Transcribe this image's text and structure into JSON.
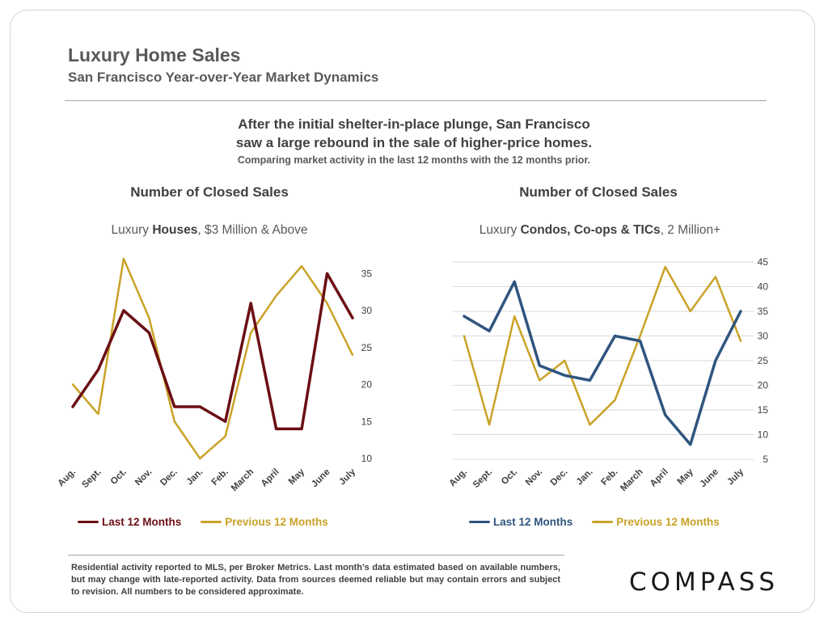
{
  "page": {
    "title": "Luxury Home Sales",
    "subtitle": "San Francisco Year-over-Year Market Dynamics",
    "headline_line1": "After the initial shelter-in-place plunge, San Francisco",
    "headline_line2": "saw a large rebound in the sale of higher-price homes.",
    "note": "Comparing market activity in the last 12 months with the 12 months prior.",
    "disclaimer": "Residential activity reported to MLS, per Broker Metrics. Last month’s data estimated based on available numbers, but may change with late-reported activity. Data from sources deemed reliable but may contain errors and subject to revision. All numbers to be considered approximate.",
    "logo": "COMPASS"
  },
  "colors": {
    "left_last12": "#6b0f14",
    "left_prev12": "#c9a227",
    "right_last12": "#2f557f",
    "right_prev12": "#c9a227",
    "text": "#404040"
  },
  "chart_data": [
    {
      "type": "line",
      "title": "Number of Closed Sales",
      "subtitle_prefix": "Luxury ",
      "subtitle_bold": "Houses",
      "subtitle_suffix": ", $3 Million & Above",
      "categories": [
        "Aug.",
        "Sept.",
        "Oct.",
        "Nov.",
        "Dec.",
        "Jan.",
        "Feb.",
        "March",
        "April",
        "May",
        "June",
        "July"
      ],
      "series": [
        {
          "name": "Last 12 Months",
          "values": [
            17,
            22,
            30,
            27,
            17,
            17,
            15,
            31,
            14,
            14,
            35,
            29
          ]
        },
        {
          "name": "Previous 12 Months",
          "values": [
            20,
            16,
            37,
            29,
            15,
            10,
            13,
            27,
            32,
            36,
            31,
            24
          ]
        }
      ],
      "ylim": [
        10,
        37
      ],
      "yticks": [
        10,
        15,
        20,
        25,
        30,
        35
      ],
      "yaxis_side": "right",
      "grid": false,
      "legend": "bottom"
    },
    {
      "type": "line",
      "title": "Number of Closed Sales",
      "subtitle_prefix": "Luxury ",
      "subtitle_bold": "Condos, Co-ops & TICs",
      "subtitle_suffix": ", 2 Million+",
      "categories": [
        "Aug.",
        "Sept.",
        "Oct.",
        "Nov.",
        "Dec.",
        "Jan.",
        "Feb.",
        "March",
        "April",
        "May",
        "June",
        "July"
      ],
      "series": [
        {
          "name": "Last 12 Months",
          "values": [
            34,
            31,
            41,
            24,
            22,
            21,
            30,
            29,
            14,
            8,
            25,
            35
          ]
        },
        {
          "name": "Previous 12 Months",
          "values": [
            30,
            12,
            34,
            21,
            25,
            12,
            17,
            30,
            44,
            35,
            42,
            29
          ]
        }
      ],
      "ylim": [
        5,
        45
      ],
      "yticks": [
        5,
        10,
        15,
        20,
        25,
        30,
        35,
        40,
        45
      ],
      "yaxis_side": "right",
      "grid": true,
      "legend": "bottom"
    }
  ]
}
